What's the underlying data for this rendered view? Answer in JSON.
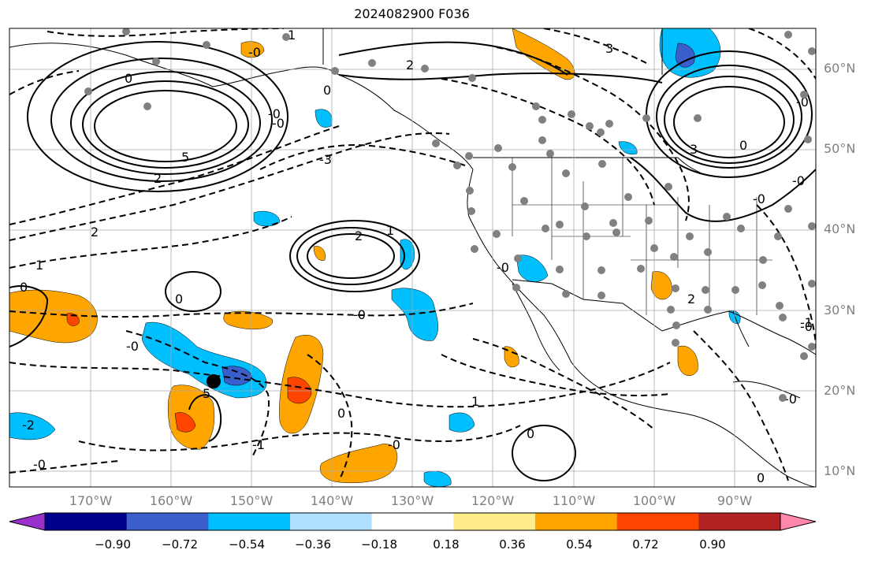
{
  "title": "2024082900 F036",
  "map": {
    "projection": "lat-lon",
    "region": "North-East Pacific and North America",
    "lon_range": [
      -180,
      -80
    ],
    "lat_range": [
      8,
      65
    ],
    "grid": true,
    "lat_labels": [
      "60°N",
      "50°N",
      "40°N",
      "30°N",
      "20°N",
      "10°N"
    ],
    "lon_labels": [
      "170°W",
      "160°W",
      "150°W",
      "140°W",
      "130°W",
      "120°W",
      "110°W",
      "100°W",
      "90°W"
    ],
    "contour_labels": [
      "1",
      "-0",
      "0",
      "2",
      "0",
      "2",
      "-3",
      "-0",
      "5",
      "3",
      "-0",
      "0",
      "2",
      "2",
      "1",
      "0",
      "1",
      "0",
      "-0",
      "1",
      "0",
      "-0",
      "-1",
      "0",
      "5",
      "-2",
      "2",
      "-1",
      "0",
      "-0",
      "-0",
      "-0",
      "-0",
      "-0",
      "-0",
      "3",
      "-0",
      "-0"
    ],
    "marker": {
      "name": "station",
      "lon": -154.5,
      "lat": 21.0
    },
    "colors": {
      "negative_contour": "#000000",
      "positive_contour": "#000000",
      "station_dots": "#808080",
      "marker": "#000000"
    }
  },
  "colorbar": {
    "ticks": [
      "−0.90",
      "−0.72",
      "−0.54",
      "−0.36",
      "−0.18",
      "0.18",
      "0.36",
      "0.54",
      "0.72",
      "0.90"
    ],
    "colors": [
      "#9932cc",
      "#00008b",
      "#3a5fcd",
      "#00bfff",
      "#afe0ff",
      "#ffffff",
      "#ffec8b",
      "#ffa500",
      "#ff4500",
      "#b22222",
      "#ff88aa"
    ]
  }
}
